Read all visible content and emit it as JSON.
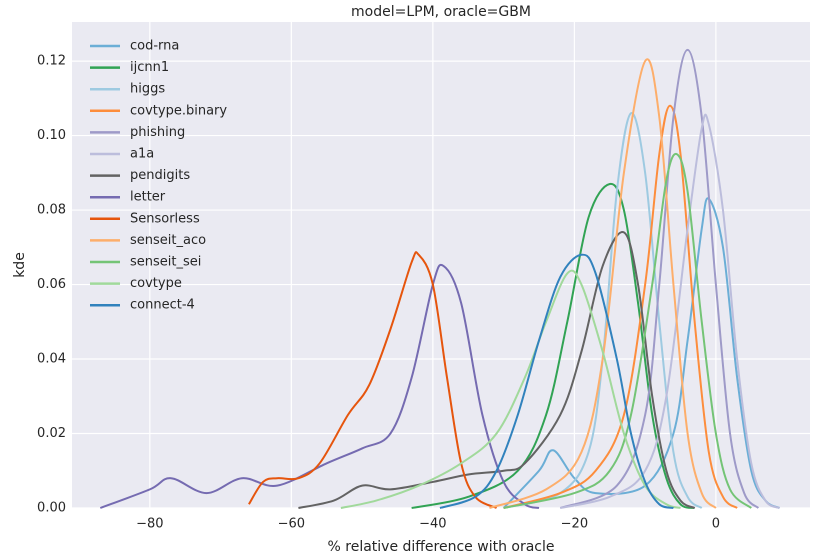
{
  "chart_data": {
    "type": "line",
    "title": "model=LPM, oracle=GBM",
    "xlabel": "% relative difference with oracle",
    "ylabel": "kde",
    "xlim": [
      -91,
      13.3
    ],
    "ylim": [
      0,
      0.1305
    ],
    "xticks": [
      {
        "value": -80,
        "label": "−80"
      },
      {
        "value": -60,
        "label": "−60"
      },
      {
        "value": -40,
        "label": "−40"
      },
      {
        "value": -20,
        "label": "−20"
      },
      0
    ],
    "yticks": [
      {
        "value": 0,
        "label": "0.00"
      },
      {
        "value": 0.02,
        "label": "0.02"
      },
      {
        "value": 0.04,
        "label": "0.04"
      },
      {
        "value": 0.06,
        "label": "0.06"
      },
      {
        "value": 0.08,
        "label": "0.08"
      },
      {
        "value": 0.1,
        "label": "0.10"
      },
      {
        "value": 0.12,
        "label": "0.12"
      }
    ],
    "grid": true,
    "legend": "upper left",
    "series": [
      {
        "name": "cod-rna",
        "color": "#6baed6",
        "x": [
          -30,
          -25,
          -23,
          -20,
          -17,
          -10,
          -6,
          -4,
          -2,
          -1,
          1,
          3,
          5,
          7,
          9
        ],
        "values": [
          0,
          0.01,
          0.0155,
          0.008,
          0.004,
          0.006,
          0.02,
          0.045,
          0.075,
          0.083,
          0.07,
          0.035,
          0.01,
          0.002,
          0
        ]
      },
      {
        "name": "ijcnn1",
        "color": "#31a354",
        "x": [
          -43,
          -35,
          -28,
          -24,
          -21,
          -18,
          -15,
          -13,
          -11,
          -9,
          -7,
          -5,
          -3
        ],
        "values": [
          0,
          0.003,
          0.01,
          0.025,
          0.05,
          0.078,
          0.087,
          0.08,
          0.055,
          0.025,
          0.008,
          0.001,
          0
        ]
      },
      {
        "name": "higgs",
        "color": "#9ecae1",
        "x": [
          -30,
          -22,
          -18,
          -16,
          -14,
          -12,
          -10,
          -8,
          -6,
          -4,
          -2
        ],
        "values": [
          0,
          0.004,
          0.015,
          0.04,
          0.085,
          0.106,
          0.09,
          0.05,
          0.015,
          0.003,
          0
        ]
      },
      {
        "name": "covtype.binary",
        "color": "#fd8d3c",
        "x": [
          -30,
          -22,
          -17,
          -13,
          -10,
          -8,
          -6.5,
          -5,
          -3,
          -1,
          1,
          3
        ],
        "values": [
          0,
          0.004,
          0.01,
          0.025,
          0.06,
          0.095,
          0.108,
          0.095,
          0.05,
          0.015,
          0.003,
          0
        ]
      },
      {
        "name": "phishing",
        "color": "#9e9ac8",
        "x": [
          -22,
          -14,
          -10,
          -8,
          -6,
          -4,
          -2,
          0,
          2,
          4,
          6
        ],
        "values": [
          0,
          0.006,
          0.025,
          0.06,
          0.105,
          0.123,
          0.105,
          0.06,
          0.02,
          0.004,
          0
        ]
      },
      {
        "name": "a1a",
        "color": "#bcbddc",
        "x": [
          -22,
          -15,
          -10,
          -7,
          -4,
          -2,
          -1,
          1,
          3,
          5,
          7,
          9
        ],
        "values": [
          0,
          0.003,
          0.01,
          0.03,
          0.075,
          0.102,
          0.103,
          0.08,
          0.04,
          0.012,
          0.002,
          0
        ]
      },
      {
        "name": "pendigits",
        "color": "#636363",
        "x": [
          -59,
          -54,
          -50,
          -46,
          -40,
          -35,
          -30,
          -27,
          -22,
          -19,
          -16,
          -13,
          -11,
          -9,
          -7,
          -5,
          -3
        ],
        "values": [
          0,
          0.002,
          0.006,
          0.005,
          0.007,
          0.009,
          0.01,
          0.012,
          0.025,
          0.042,
          0.065,
          0.074,
          0.06,
          0.03,
          0.01,
          0.002,
          0
        ]
      },
      {
        "name": "letter",
        "color": "#756bb1",
        "x": [
          -87,
          -80,
          -77,
          -72,
          -67,
          -62,
          -55,
          -50,
          -46,
          -43,
          -40,
          -38.5,
          -36,
          -33,
          -30,
          -27,
          -25
        ],
        "values": [
          0,
          0.005,
          0.008,
          0.004,
          0.008,
          0.006,
          0.012,
          0.016,
          0.02,
          0.035,
          0.06,
          0.065,
          0.055,
          0.025,
          0.007,
          0.001,
          0
        ]
      },
      {
        "name": "Sensorless",
        "color": "#e6550d",
        "x": [
          -66,
          -64,
          -62,
          -59,
          -56,
          -52,
          -49,
          -46,
          -43,
          -42,
          -40,
          -38,
          -36,
          -34,
          -31
        ],
        "values": [
          0.001,
          0.007,
          0.008,
          0.008,
          0.012,
          0.025,
          0.033,
          0.048,
          0.066,
          0.068,
          0.06,
          0.035,
          0.012,
          0.003,
          0
        ]
      },
      {
        "name": "senseit_aco",
        "color": "#fdae6b",
        "x": [
          -32,
          -24,
          -19,
          -16,
          -13,
          -10,
          -8,
          -6,
          -4,
          -2,
          0
        ],
        "values": [
          0,
          0.005,
          0.015,
          0.04,
          0.09,
          0.12,
          0.105,
          0.06,
          0.02,
          0.004,
          0
        ]
      },
      {
        "name": "senseit_sei",
        "color": "#74c476",
        "x": [
          -30,
          -20,
          -15,
          -12,
          -9,
          -7,
          -5.5,
          -4,
          -2,
          0,
          2,
          5
        ],
        "values": [
          0,
          0.004,
          0.01,
          0.025,
          0.06,
          0.088,
          0.095,
          0.085,
          0.05,
          0.02,
          0.005,
          0
        ]
      },
      {
        "name": "covtype",
        "color": "#a1d99b",
        "x": [
          -53,
          -48,
          -42,
          -36,
          -31,
          -27,
          -24,
          -21,
          -19,
          -16,
          -13,
          -10,
          -7,
          -5
        ],
        "values": [
          0,
          0.002,
          0.006,
          0.012,
          0.02,
          0.035,
          0.05,
          0.063,
          0.06,
          0.042,
          0.02,
          0.006,
          0.001,
          0
        ]
      },
      {
        "name": "connect-4",
        "color": "#3182bd",
        "x": [
          -39,
          -34,
          -31,
          -28,
          -25,
          -22,
          -19,
          -17,
          -14,
          -12,
          -10,
          -8,
          -6
        ],
        "values": [
          0,
          0.003,
          0.01,
          0.025,
          0.045,
          0.062,
          0.068,
          0.063,
          0.04,
          0.02,
          0.007,
          0.001,
          0
        ]
      }
    ]
  }
}
